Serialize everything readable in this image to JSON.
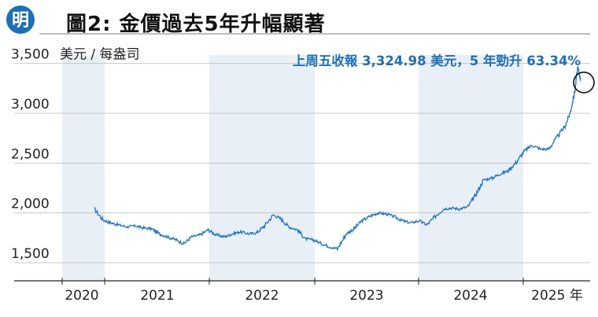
{
  "header": {
    "logo_char": "明",
    "title": "圖2: 金價過去5年升幅顯著"
  },
  "colors": {
    "line": "#2a78c2",
    "band": "#e9eff7",
    "annotation": "#1f6fb5",
    "logo": "#1f6fb5"
  },
  "chart_data": {
    "type": "line",
    "title": "圖2: 金價過去5年升幅顯著",
    "ylabel": "美元 / 每盎司",
    "xlabel": "",
    "ylim": [
      1350,
      3600
    ],
    "y_ticks": [
      1500,
      2000,
      2500,
      3000,
      3500
    ],
    "y_tick_labels": [
      "1,500",
      "2,000",
      "2,500",
      "3,000",
      "3,500"
    ],
    "x_tick_labels": [
      "2020",
      "2021",
      "2022",
      "2023",
      "2024",
      "2025 年"
    ],
    "annotation": "上周五收報 3,324.98 美元，5 年勁升 63.34%",
    "grid": true,
    "series": [
      {
        "x": [
          2020.33,
          2020.42,
          2020.5,
          2020.58,
          2020.67,
          2020.75,
          2020.83,
          2020.92,
          2021.0,
          2021.08,
          2021.17,
          2021.25,
          2021.33,
          2021.42,
          2021.5,
          2021.58,
          2021.67,
          2021.75,
          2021.83,
          2021.92,
          2022.0,
          2022.08,
          2022.17,
          2022.25,
          2022.33,
          2022.42,
          2022.5,
          2022.58,
          2022.67,
          2022.75,
          2022.83,
          2022.92,
          2023.0,
          2023.08,
          2023.17,
          2023.25,
          2023.33,
          2023.42,
          2023.5,
          2023.58,
          2023.67,
          2023.75,
          2023.83,
          2023.92,
          2024.0,
          2024.08,
          2024.17,
          2024.25,
          2024.33,
          2024.42,
          2024.5,
          2024.58,
          2024.67,
          2024.75,
          2024.83,
          2024.92,
          2025.0,
          2025.08,
          2025.17,
          2025.22,
          2025.27,
          2025.3,
          2025.33
        ],
        "y": [
          2040,
          1930,
          1900,
          1880,
          1860,
          1870,
          1850,
          1840,
          1790,
          1760,
          1730,
          1690,
          1760,
          1780,
          1830,
          1780,
          1760,
          1790,
          1810,
          1790,
          1800,
          1870,
          1980,
          1940,
          1860,
          1830,
          1740,
          1730,
          1690,
          1660,
          1640,
          1790,
          1840,
          1920,
          1970,
          2000,
          1990,
          1960,
          1920,
          1900,
          1920,
          1880,
          1960,
          2040,
          2050,
          2040,
          2060,
          2180,
          2330,
          2350,
          2390,
          2420,
          2510,
          2620,
          2680,
          2640,
          2640,
          2750,
          2870,
          3000,
          3220,
          3470,
          3324.98
        ]
      }
    ]
  }
}
